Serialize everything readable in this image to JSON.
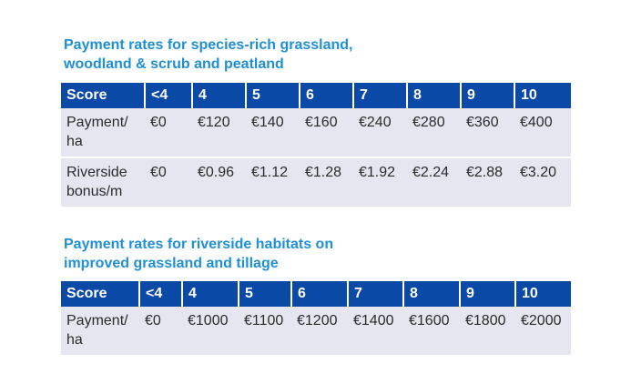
{
  "table1": {
    "title_line1": "Payment rates for species-rich grassland,",
    "title_line2": "woodland & scrub and peatland",
    "header": [
      "Score",
      "<4",
      "4",
      "5",
      "6",
      "7",
      "8",
      "9",
      "10"
    ],
    "rows": [
      {
        "label_line1": "Payment/",
        "label_line2": "ha",
        "values": [
          "€0",
          "€120",
          "€140",
          "€160",
          "€240",
          "€280",
          "€360",
          "€400"
        ]
      },
      {
        "label_line1": "Riverside",
        "label_line2": "bonus/m",
        "values": [
          "€0",
          "€0.96",
          "€1.12",
          "€1.28",
          "€1.92",
          "€2.24",
          "€2.88",
          "€3.20"
        ]
      }
    ]
  },
  "table2": {
    "title_line1": "Payment rates for riverside habitats on",
    "title_line2": "improved grassland and tillage",
    "header": [
      "Score",
      "<4",
      "4",
      "5",
      "6",
      "7",
      "8",
      "9",
      "10"
    ],
    "rows": [
      {
        "label_line1": "Payment/",
        "label_line2": "ha",
        "values": [
          "€0",
          "€1000",
          "€1100",
          "€1200",
          "€1400",
          "€1600",
          "€1800",
          "€2000"
        ]
      }
    ]
  },
  "colors": {
    "title": "#1f8fd6",
    "header_bg": "#0a4aa6",
    "row_bg": "#e6e6f0"
  }
}
